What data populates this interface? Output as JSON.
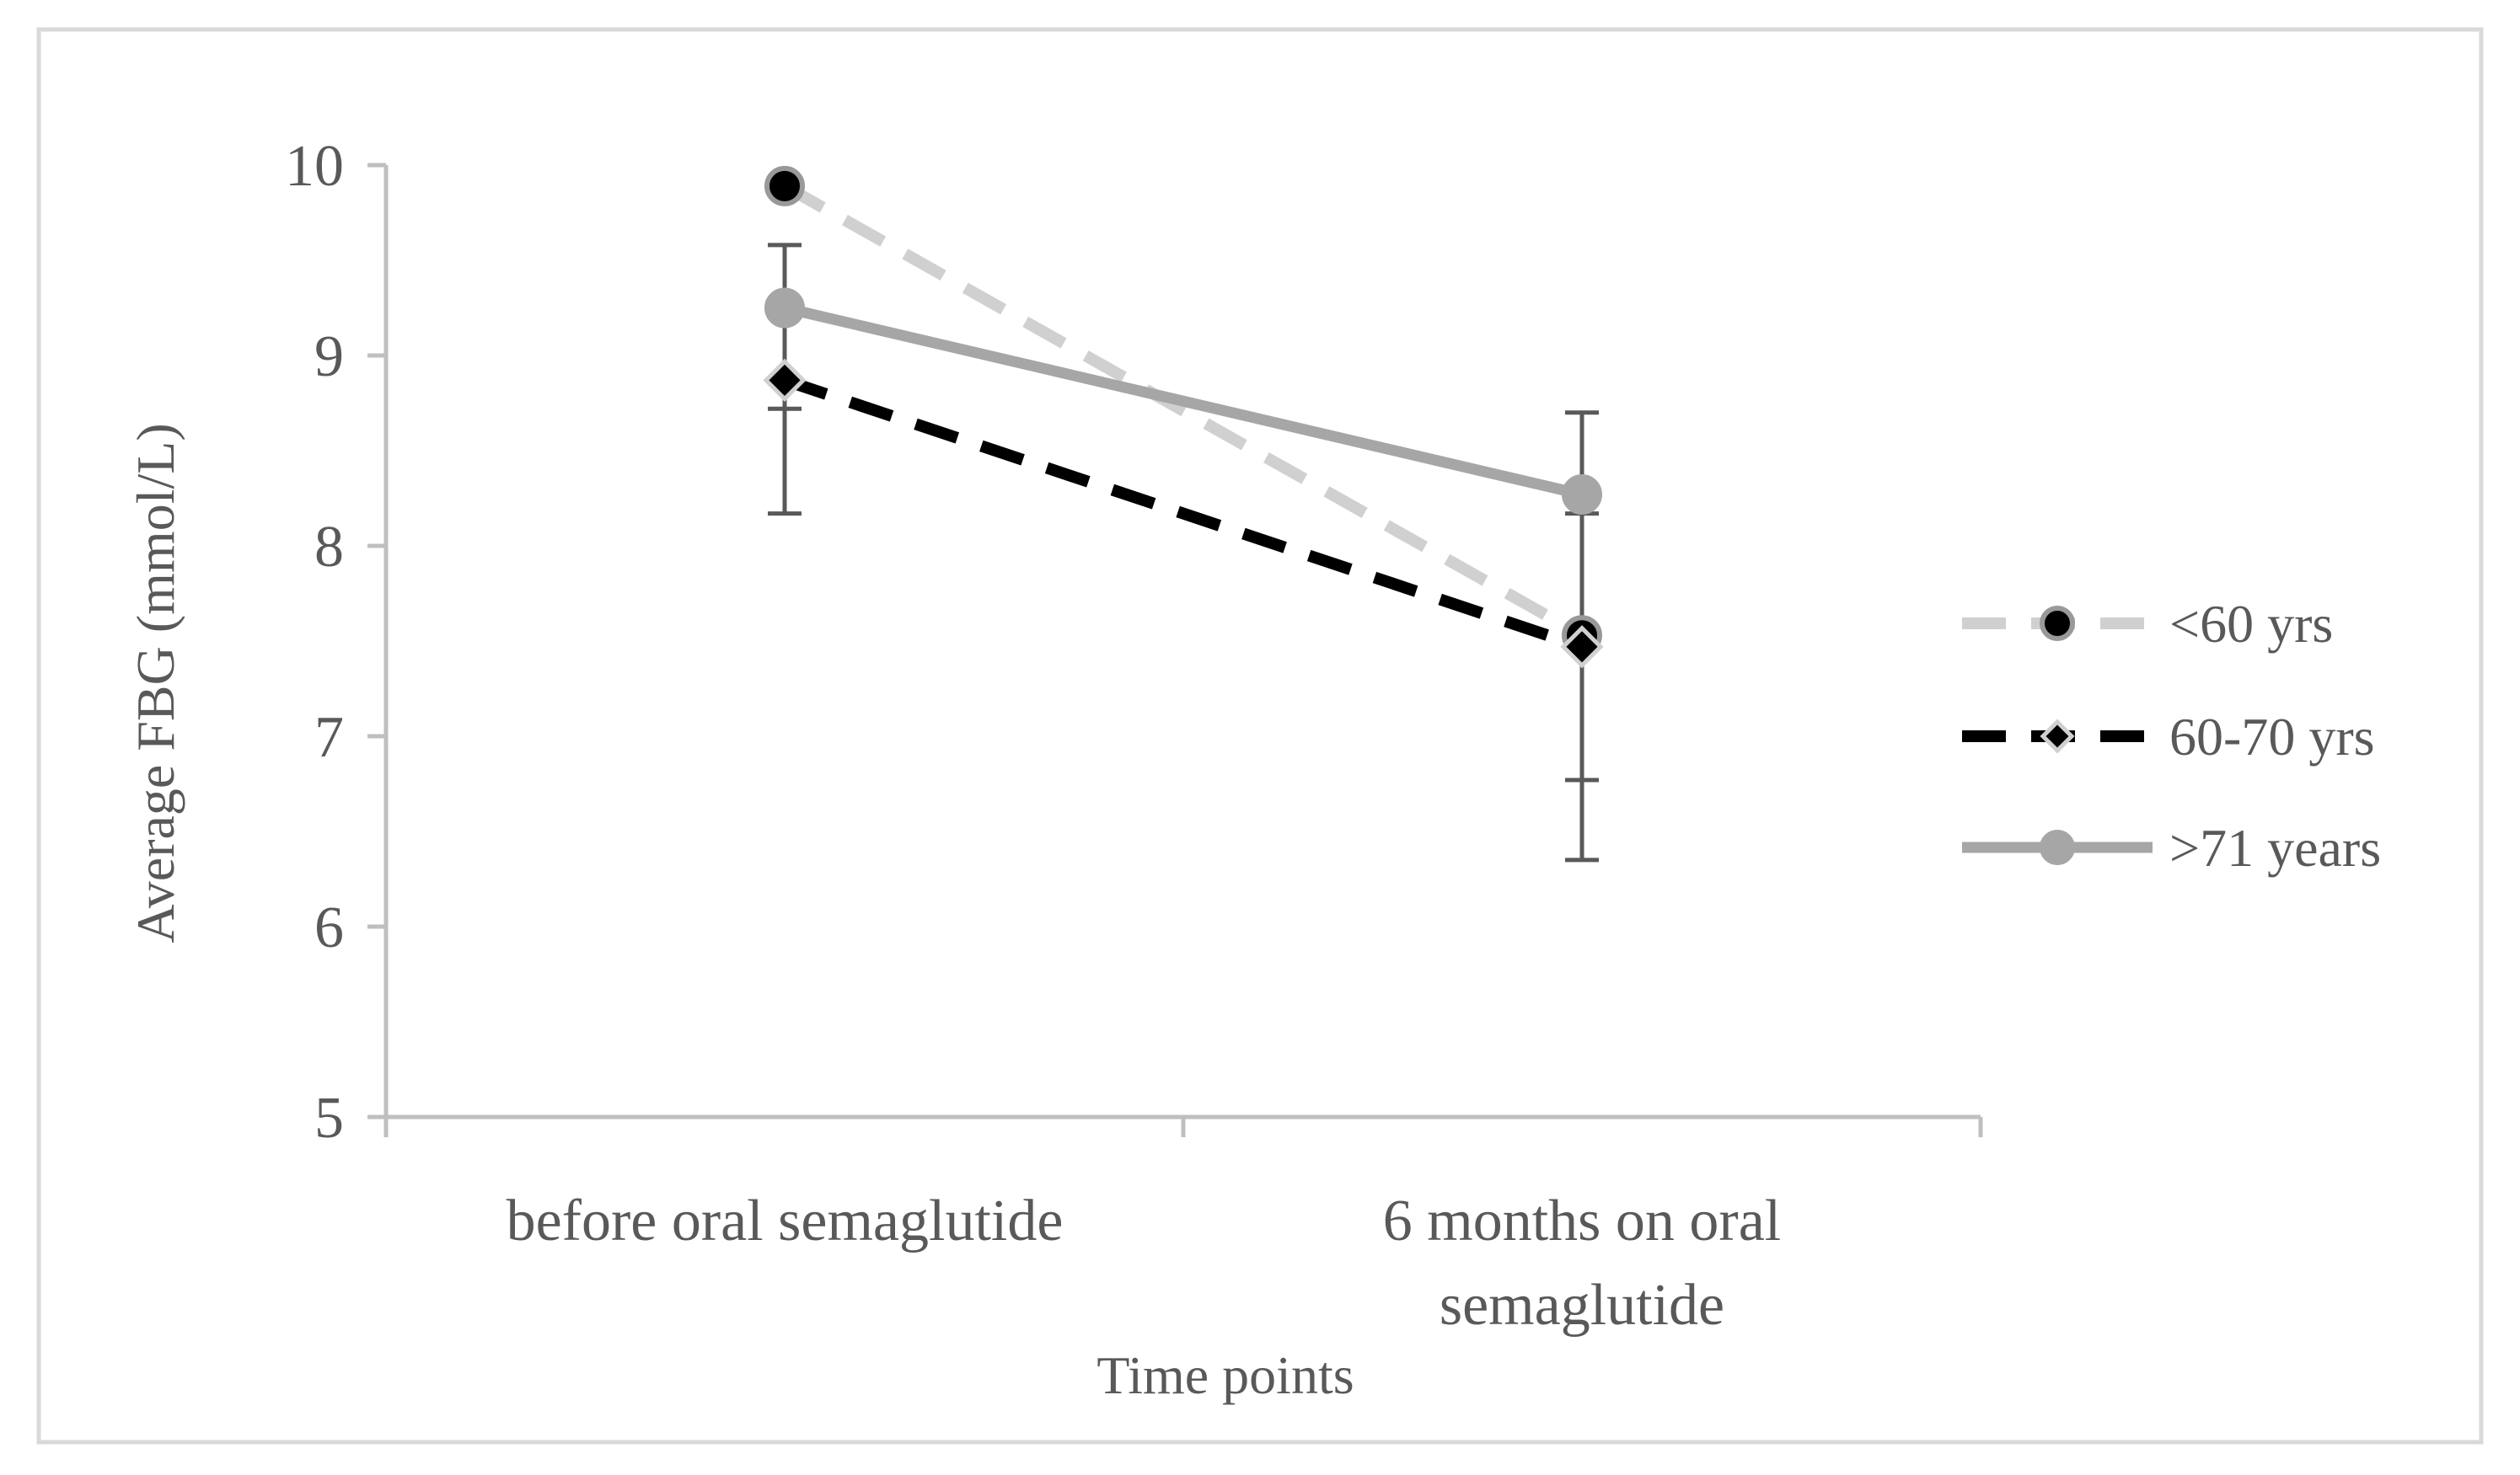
{
  "chart_data": {
    "type": "line",
    "title": "",
    "xlabel": "Time points",
    "ylabel": "Average FBG (mmol/L)",
    "ylim": [
      5,
      10
    ],
    "yticks": [
      "5",
      "6",
      "7",
      "8",
      "9",
      "10"
    ],
    "categories": [
      [
        "before oral semaglutide"
      ],
      [
        "6 months on  oral",
        "semaglutide"
      ]
    ],
    "series": [
      {
        "name": "<60 yrs",
        "values": [
          9.89,
          7.53
        ],
        "line_color": "#d0d0d0",
        "line_style": "dashed",
        "marker": "circle",
        "marker_fill": "#000000",
        "marker_stroke": "#999999"
      },
      {
        "name": "60-70 yrs",
        "values": [
          8.87,
          7.47
        ],
        "line_color": "#000000",
        "line_style": "dashed",
        "marker": "diamond",
        "marker_fill": "#000000",
        "marker_stroke": "#d0d0d0"
      },
      {
        "name": ">71 years",
        "values": [
          9.25,
          8.27
        ],
        "line_color": "#a6a6a6",
        "line_style": "solid",
        "marker": "circle",
        "marker_fill": "#a6a6a6",
        "marker_stroke": "#a6a6a6"
      }
    ],
    "error_bars": [
      {
        "category_index": 0,
        "low": 8.17,
        "high": 9.58,
        "mid_ticks": [
          8.72
        ]
      },
      {
        "category_index": 1,
        "low": 6.35,
        "high": 8.7,
        "mid_ticks": [
          6.77,
          8.17
        ]
      }
    ],
    "legend_position": "right",
    "grid": false,
    "colors": {
      "axis": "#bfbfbf",
      "text": "#595959",
      "error_bar": "#595959",
      "frame": "#d9d9d9"
    }
  }
}
